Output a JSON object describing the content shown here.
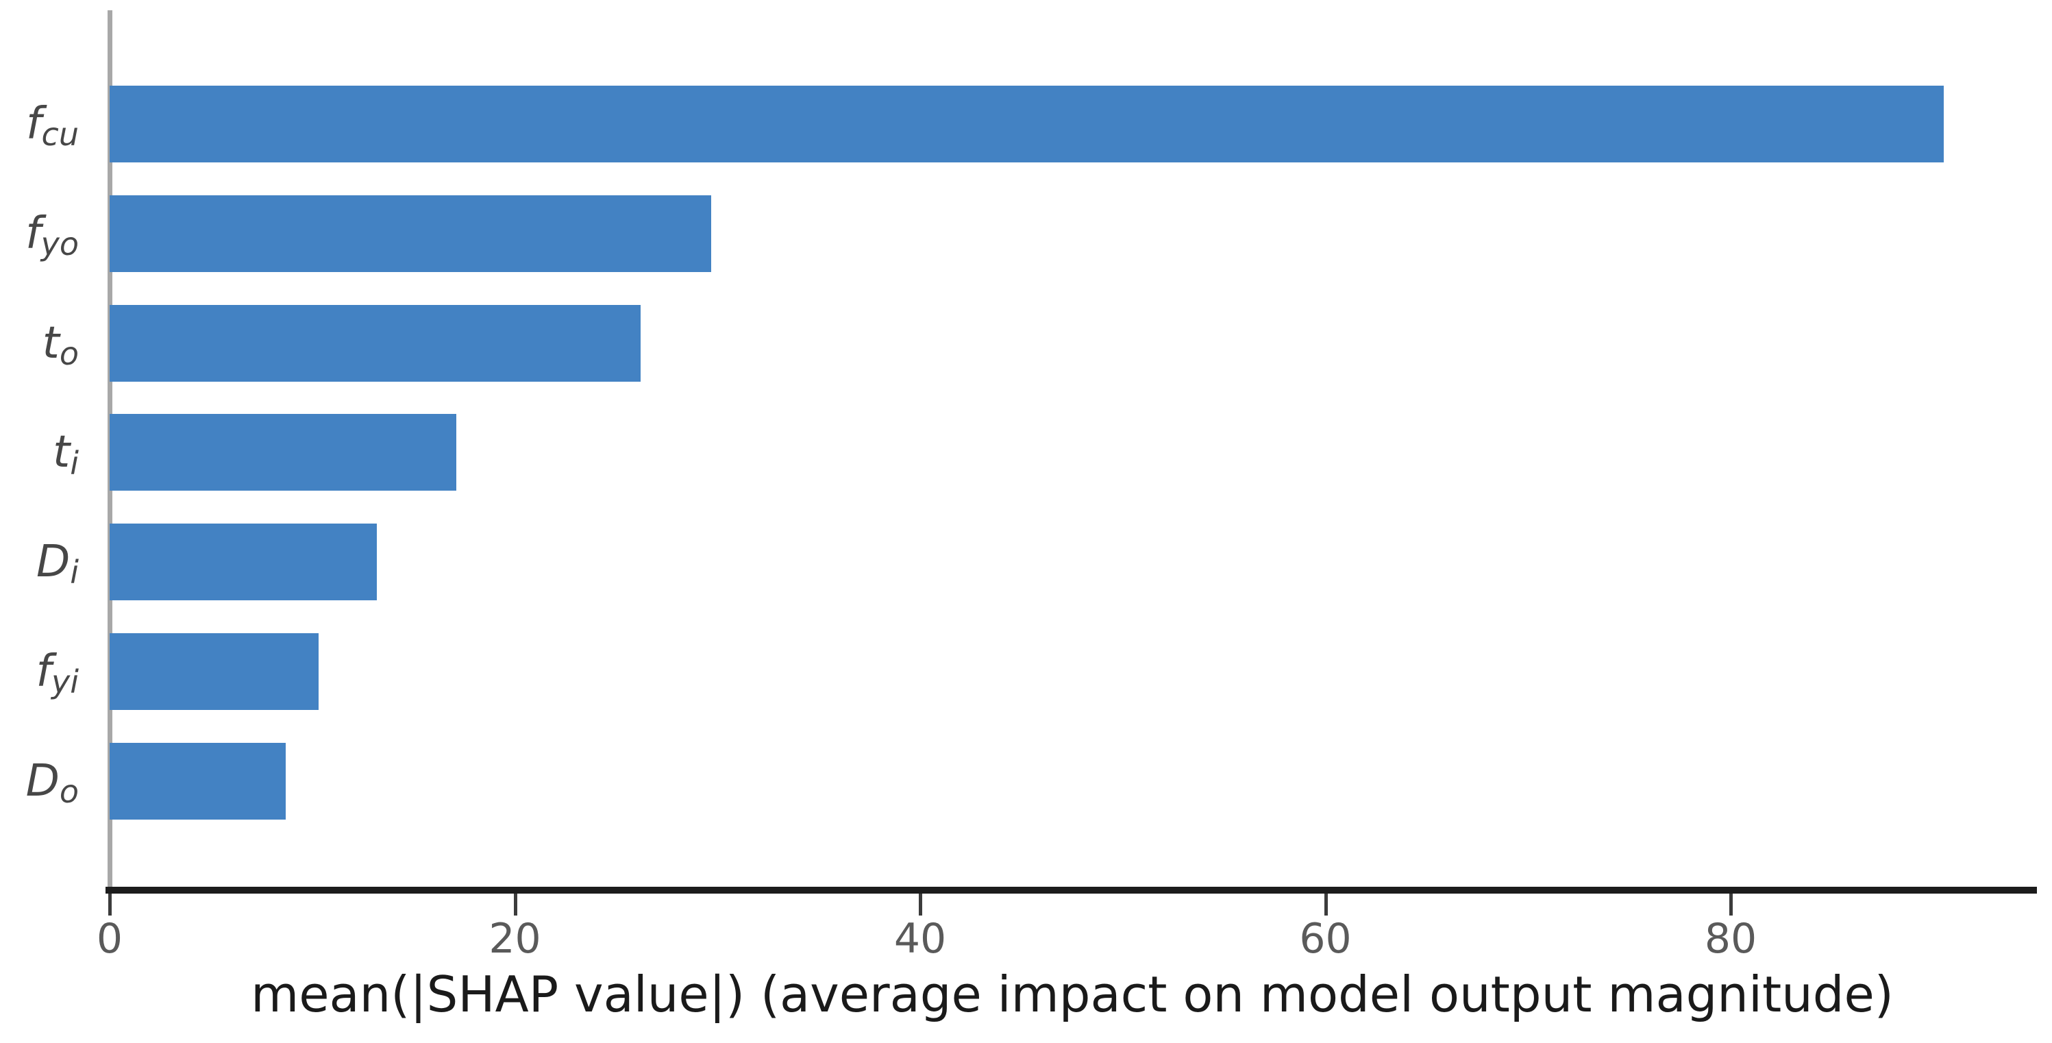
{
  "chart_data": {
    "type": "bar",
    "orientation": "horizontal",
    "title": "",
    "xlabel": "mean(|SHAP value|) (average impact on model output magnitude)",
    "ylabel": "",
    "categories": [
      "f_cu",
      "f_yo",
      "t_o",
      "t_i",
      "D_i",
      "f_yi",
      "D_o"
    ],
    "categories_rich": [
      {
        "base": "f",
        "sub": "cu"
      },
      {
        "base": "f",
        "sub": "yo"
      },
      {
        "base": "t",
        "sub": "o"
      },
      {
        "base": "t",
        "sub": "i"
      },
      {
        "base": "D",
        "sub": "i"
      },
      {
        "base": "f",
        "sub": "yi"
      },
      {
        "base": "D",
        "sub": "o"
      }
    ],
    "values": [
      90.5,
      29.7,
      26.2,
      17.1,
      13.2,
      10.3,
      8.7
    ],
    "xlim": [
      0,
      95.7
    ],
    "xticks": [
      0,
      20,
      40,
      60,
      80
    ],
    "xtick_labels": [
      "0",
      "20",
      "40",
      "60",
      "80"
    ],
    "grid": false,
    "legend": null,
    "colors": {
      "bar": "#4382C3",
      "left_spine": "#A8A8A8",
      "bottom_axis": "#1C1C1C",
      "tick_mark": "#3C3C3C",
      "tick_label": "#5A5A5A",
      "x_label": "#1A1A1A",
      "y_label": "#474747",
      "background": "#FFFFFF"
    }
  }
}
